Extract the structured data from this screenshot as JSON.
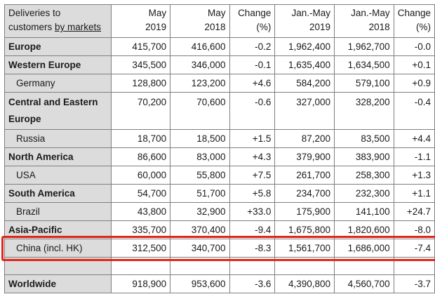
{
  "table": {
    "header": {
      "label_line1": "Deliveries to",
      "label_line2_plain": "customers ",
      "label_line2_underlined": "by markets",
      "columns": [
        {
          "line1": "May",
          "line2": "2019"
        },
        {
          "line1": "May",
          "line2": "2018"
        },
        {
          "line1": "Change",
          "line2": "(%)"
        },
        {
          "line1": "Jan.-May",
          "line2": "2019"
        },
        {
          "line1": "Jan.-May",
          "line2": "2018"
        },
        {
          "line1": "Change",
          "line2": "(%)"
        }
      ]
    },
    "rows": [
      {
        "label": "Europe",
        "values": [
          "415,700",
          "416,600",
          "-0.2",
          "1,962,400",
          "1,962,700",
          "-0.0"
        ]
      },
      {
        "label": "Western Europe",
        "values": [
          "345,500",
          "346,000",
          "-0.1",
          "1,635,400",
          "1,634,500",
          "+0.1"
        ]
      },
      {
        "label": "Germany",
        "values": [
          "128,800",
          "123,200",
          "+4.6",
          "584,200",
          "579,100",
          "+0.9"
        ]
      },
      {
        "label": "Central and Eastern Europe",
        "values": [
          "70,200",
          "70,600",
          "-0.6",
          "327,000",
          "328,200",
          "-0.4"
        ]
      },
      {
        "label": "Russia",
        "values": [
          "18,700",
          "18,500",
          "+1.5",
          "87,200",
          "83,500",
          "+4.4"
        ]
      },
      {
        "label": "North America",
        "values": [
          "86,600",
          "83,000",
          "+4.3",
          "379,900",
          "383,900",
          "-1.1"
        ]
      },
      {
        "label": "USA",
        "values": [
          "60,000",
          "55,800",
          "+7.5",
          "261,700",
          "258,300",
          "+1.3"
        ]
      },
      {
        "label": "South America",
        "values": [
          "54,700",
          "51,700",
          "+5.8",
          "234,700",
          "232,300",
          "+1.1"
        ]
      },
      {
        "label": "Brazil",
        "values": [
          "43,800",
          "32,900",
          "+33.0",
          "175,900",
          "141,100",
          "+24.7"
        ]
      },
      {
        "label": "Asia-Pacific",
        "values": [
          "335,700",
          "370,400",
          "-9.4",
          "1,675,800",
          "1,820,600",
          "-8.0"
        ]
      },
      {
        "label": "China (incl. HK)",
        "values": [
          "312,500",
          "340,700",
          "-8.3",
          "1,561,700",
          "1,686,000",
          "-7.4"
        ]
      },
      {
        "label": "Worldwide",
        "values": [
          "918,900",
          "953,600",
          "-3.6",
          "4,390,800",
          "4,560,700",
          "-3.7"
        ]
      }
    ]
  },
  "highlight_color": "#e0261b"
}
